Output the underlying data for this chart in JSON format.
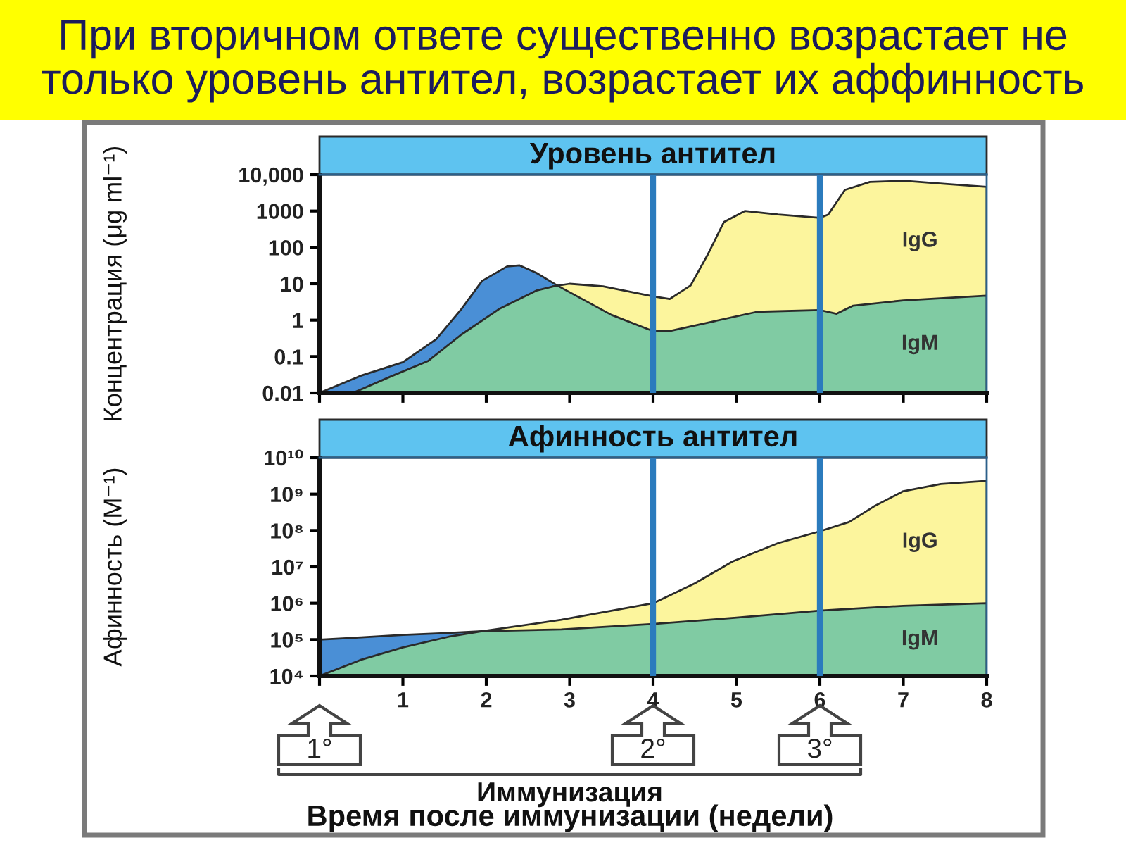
{
  "chart_data": [
    {
      "type": "area",
      "title": "При вторичном ответе существенно возрастает не\nтолько уровень антител, возрастает их аффинность",
      "subtitle": "Уровень антител",
      "ylabel": "Концентрация (μg ml⁻¹)",
      "log": "y",
      "xlim": [
        0,
        8
      ],
      "xticks": [
        0,
        1,
        2,
        3,
        4,
        5,
        6,
        7,
        8
      ],
      "ylim": [
        0.01,
        10000
      ],
      "yticks": [
        0.01,
        0.1,
        1,
        10,
        100,
        1000,
        {
          "value": 10000,
          "label": "10,000"
        }
      ],
      "tick_labels": "y",
      "ref_lines": [
        {
          "axis": "x",
          "value": 4,
          "color": "#2b7bbd"
        },
        {
          "axis": "x",
          "value": 6,
          "color": "#2b7bbd"
        }
      ],
      "series": [
        {
          "color": "#4a8fd6",
          "x": [
            0,
            0.5,
            1,
            1.4,
            1.7,
            1.95,
            2.25,
            2.4,
            2.6,
            2.85
          ],
          "values": [
            0.01,
            0.03,
            0.07,
            0.3,
            2,
            12,
            30,
            32,
            20,
            9
          ]
        },
        {
          "name": "IgG",
          "color": "#fcf59d",
          "x": [
            2.8,
            3.0,
            3.4,
            4.0,
            4.2,
            4.45,
            4.65,
            4.85,
            5.1,
            5.5,
            6.0,
            6.1,
            6.3,
            6.6,
            7.0,
            7.5,
            8.0
          ],
          "values": [
            8.5,
            10,
            8.5,
            4.5,
            3.8,
            9,
            60,
            500,
            1000,
            800,
            650,
            800,
            3800,
            6300,
            6800,
            5600,
            4600
          ]
        },
        {
          "name": "IgM",
          "color": "#80cba3",
          "x": [
            0.4,
            0.85,
            1.3,
            1.7,
            2.15,
            2.6,
            2.85,
            3.5,
            4.0,
            4.2,
            4.7,
            5.25,
            6.0,
            6.2,
            6.4,
            7.0,
            8.0
          ],
          "values": [
            0.01,
            0.028,
            0.075,
            0.4,
            2,
            6.5,
            9,
            1.4,
            0.5,
            0.5,
            0.9,
            1.7,
            1.9,
            1.5,
            2.5,
            3.5,
            4.7
          ]
        }
      ]
    },
    {
      "type": "area",
      "subtitle": "Афинность антител",
      "ylabel": "Афинность (M⁻¹)",
      "xlabel": "Время после иммунизации (недели)",
      "log": "y",
      "xlim": [
        0,
        8
      ],
      "xticks": [
        {
          "value": 0,
          "label": null
        },
        1,
        2,
        3,
        4,
        5,
        6,
        7,
        8
      ],
      "ylim": [
        10000,
        10000000000
      ],
      "yticks": [
        {
          "value": 10000,
          "label": "10⁴"
        },
        {
          "value": 100000,
          "label": "10⁵"
        },
        {
          "value": 1000000,
          "label": "10⁶"
        },
        {
          "value": 10000000,
          "label": "10⁷"
        },
        {
          "value": 100000000,
          "label": "10⁸"
        },
        {
          "value": 1000000000,
          "label": "10⁹"
        },
        {
          "value": 10000000000,
          "label": "10¹⁰"
        }
      ],
      "ref_lines": [
        {
          "axis": "x",
          "value": 4,
          "color": "#2b7bbd"
        },
        {
          "axis": "x",
          "value": 6,
          "color": "#2b7bbd"
        }
      ],
      "annotations": [
        {
          "text": "1°",
          "x": 0,
          "y": 10000
        },
        {
          "text": "2°",
          "x": 4,
          "y": 10000
        },
        {
          "text": "3°",
          "x": 6,
          "y": 10000
        },
        "Иммунизация"
      ],
      "series": [
        {
          "color": "#4a8fd6",
          "x": [
            0,
            0.5,
            1,
            1.5,
            1.95
          ],
          "values": [
            100000,
            115000,
            135000,
            150000,
            170000
          ]
        },
        {
          "name": "IgG",
          "color": "#fcf59d",
          "x": [
            1.95,
            2.9,
            4.0,
            4.5,
            4.95,
            5.5,
            6.0,
            6.35,
            6.65,
            7.0,
            7.45,
            8.0
          ],
          "values": [
            170000,
            350000,
            1000000,
            3500000,
            14000000,
            45000000,
            95000000,
            170000000,
            460000000,
            1200000000,
            1900000000,
            2300000000
          ]
        },
        {
          "name": "IgM",
          "color": "#80cba3",
          "x": [
            0,
            0.5,
            1,
            1.55,
            1.95,
            2.9,
            4.0,
            5.0,
            6.0,
            7.0,
            8.0
          ],
          "values": [
            10000,
            28000,
            61000,
            120000,
            170000,
            190000,
            270000,
            400000,
            630000,
            850000,
            1000000
          ]
        }
      ]
    }
  ]
}
